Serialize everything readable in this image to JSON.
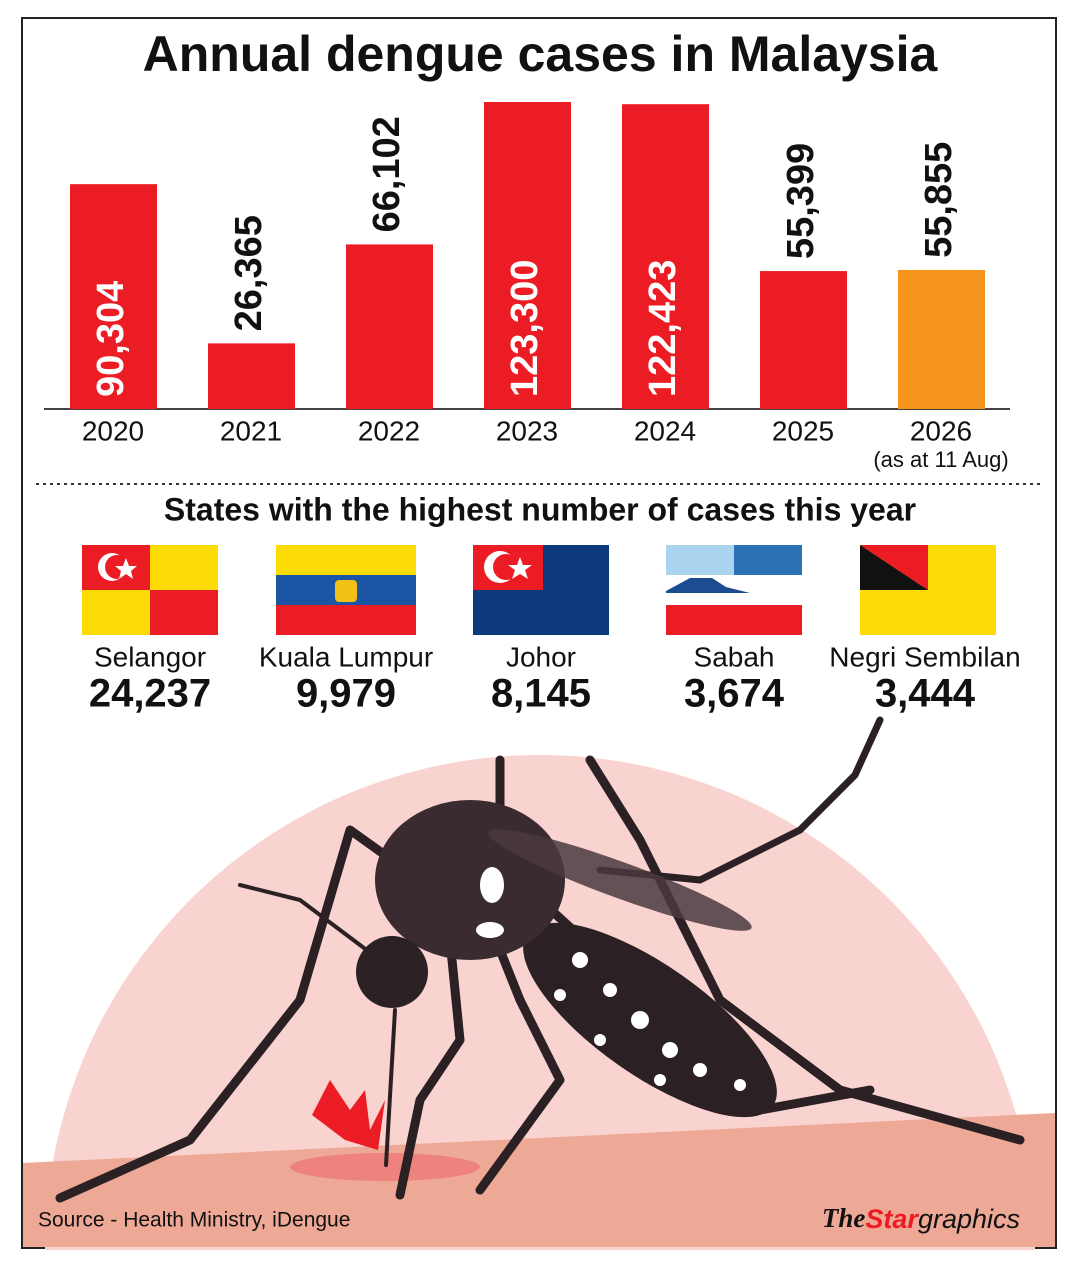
{
  "chart_data": [
    {
      "type": "bar",
      "title": "Annual dengue cases in Malaysia",
      "categories": [
        "2020",
        "2021",
        "2022",
        "2023",
        "2024",
        "2025",
        "2026"
      ],
      "values": [
        90304,
        26365,
        66102,
        123300,
        122423,
        55399,
        55855
      ],
      "value_labels": [
        "90,304",
        "26,365",
        "66,102",
        "123,300",
        "122,423",
        "55,399",
        "55,855"
      ],
      "colors": [
        "#ec1c24",
        "#ec1c24",
        "#ec1c24",
        "#ec1c24",
        "#ec1c24",
        "#ec1c24",
        "#f7941d"
      ],
      "note": "(as at 11 Aug)"
    },
    {
      "type": "stats",
      "title": "States with the highest number of cases this year",
      "categories": [
        "Selangor",
        "Kuala Lumpur",
        "Johor",
        "Sabah",
        "Negri Sembilan"
      ],
      "values": [
        24237,
        9979,
        8145,
        3674,
        3444
      ],
      "value_labels": [
        "24,237",
        "9,979",
        "8,145",
        "3,674",
        "3,444"
      ]
    }
  ],
  "source": "Source - Health Ministry, iDengue",
  "credit": [
    "The",
    "Star",
    "graphics"
  ]
}
